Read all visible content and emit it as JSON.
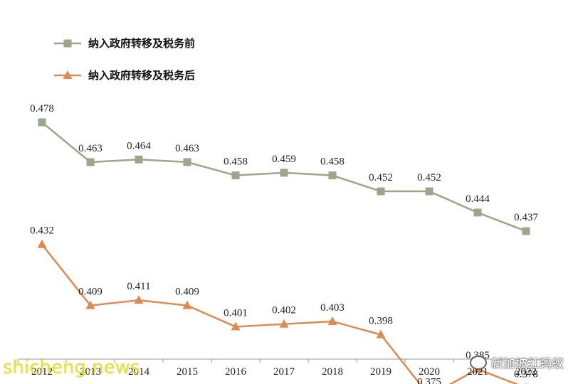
{
  "chart_data": {
    "type": "line",
    "categories": [
      "2012",
      "2013",
      "2014",
      "2015",
      "2016",
      "2017",
      "2018",
      "2019",
      "2020",
      "2021",
      "2022"
    ],
    "series": [
      {
        "name": "纳入政府转移及税务前",
        "values": [
          0.478,
          0.463,
          0.464,
          0.463,
          0.458,
          0.459,
          0.458,
          0.452,
          0.452,
          0.444,
          0.437
        ],
        "labels": [
          "0.478",
          "0.463",
          "0.464",
          "0.463",
          "0.458",
          "0.459",
          "0.458",
          "0.452",
          "0.452",
          "0.444",
          "0.437"
        ],
        "color": "#9aa789",
        "marker": "square"
      },
      {
        "name": "纳入政府转移及税务后",
        "values": [
          0.432,
          0.409,
          0.411,
          0.409,
          0.401,
          0.402,
          0.403,
          0.398,
          0.375,
          0.385,
          0.378
        ],
        "labels": [
          "0.432",
          "0.409",
          "0.411",
          "0.409",
          "0.401",
          "0.402",
          "0.403",
          "0.398",
          "0.375",
          "0.385",
          "0.378"
        ],
        "color": "#e08a52",
        "marker": "triangle"
      }
    ],
    "ylim": [
      0.26,
      0.5
    ],
    "grid": false,
    "legend_position": "top-left"
  },
  "watermark": {
    "source": "新加坡红蚂蚁",
    "site": "shicheng.news"
  }
}
